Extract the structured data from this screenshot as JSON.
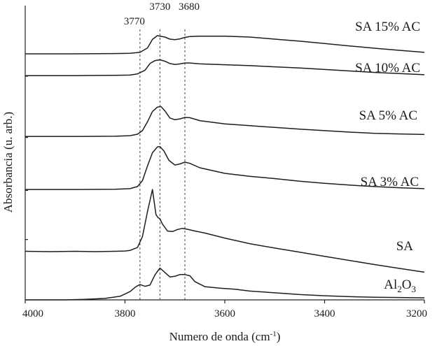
{
  "chart_data": {
    "type": "line",
    "title": "",
    "xlabel": "Numero de onda (cm",
    "xlabel_sup": "-1",
    "xlabel_close": ")",
    "ylabel": "Absorbancia (u. arb.)",
    "xlim": [
      4000,
      3200
    ],
    "x_reversed": true,
    "ylim": [
      0,
      10
    ],
    "y_ticks_labeled": false,
    "x_ticks": [
      {
        "value": 4000,
        "label": "4000"
      },
      {
        "value": 3800,
        "label": "3800"
      },
      {
        "value": 3600,
        "label": "3600"
      },
      {
        "value": 3400,
        "label": "3400"
      },
      {
        "value": 3200,
        "label": "3200"
      }
    ],
    "y_minor_ticks": [
      2.05,
      3.72,
      5.52,
      7.6
    ],
    "reference_lines": [
      {
        "x": 3770,
        "label": "3770"
      },
      {
        "x": 3730,
        "label": "3730"
      },
      {
        "x": 3680,
        "label": "3680"
      }
    ],
    "series": [
      {
        "label": "SA 15% AC",
        "points": [
          [
            4000,
            8.36
          ],
          [
            3900,
            8.36
          ],
          [
            3820,
            8.37
          ],
          [
            3790,
            8.38
          ],
          [
            3770,
            8.41
          ],
          [
            3755,
            8.56
          ],
          [
            3745,
            8.85
          ],
          [
            3735,
            8.98
          ],
          [
            3730,
            8.96
          ],
          [
            3720,
            8.93
          ],
          [
            3710,
            8.86
          ],
          [
            3700,
            8.84
          ],
          [
            3690,
            8.87
          ],
          [
            3680,
            8.92
          ],
          [
            3670,
            8.95
          ],
          [
            3650,
            8.96
          ],
          [
            3600,
            8.96
          ],
          [
            3550,
            8.93
          ],
          [
            3500,
            8.86
          ],
          [
            3450,
            8.79
          ],
          [
            3400,
            8.71
          ],
          [
            3350,
            8.63
          ],
          [
            3300,
            8.55
          ],
          [
            3250,
            8.48
          ],
          [
            3200,
            8.41
          ]
        ]
      },
      {
        "label": "SA 10% AC",
        "points": [
          [
            4000,
            7.62
          ],
          [
            3900,
            7.62
          ],
          [
            3820,
            7.63
          ],
          [
            3790,
            7.64
          ],
          [
            3775,
            7.68
          ],
          [
            3760,
            7.8
          ],
          [
            3750,
            8.03
          ],
          [
            3740,
            8.13
          ],
          [
            3730,
            8.16
          ],
          [
            3720,
            8.11
          ],
          [
            3710,
            8.03
          ],
          [
            3700,
            8.0
          ],
          [
            3690,
            8.02
          ],
          [
            3680,
            8.05
          ],
          [
            3670,
            8.05
          ],
          [
            3650,
            8.02
          ],
          [
            3600,
            7.99
          ],
          [
            3550,
            7.96
          ],
          [
            3500,
            7.92
          ],
          [
            3450,
            7.88
          ],
          [
            3400,
            7.83
          ],
          [
            3350,
            7.78
          ],
          [
            3300,
            7.73
          ],
          [
            3250,
            7.69
          ],
          [
            3200,
            7.65
          ]
        ]
      },
      {
        "label": "SA 5% AC",
        "points": [
          [
            4000,
            5.55
          ],
          [
            3900,
            5.55
          ],
          [
            3820,
            5.56
          ],
          [
            3790,
            5.58
          ],
          [
            3775,
            5.63
          ],
          [
            3765,
            5.75
          ],
          [
            3755,
            6.05
          ],
          [
            3745,
            6.4
          ],
          [
            3735,
            6.55
          ],
          [
            3728,
            6.57
          ],
          [
            3720,
            6.42
          ],
          [
            3710,
            6.18
          ],
          [
            3700,
            6.12
          ],
          [
            3690,
            6.15
          ],
          [
            3680,
            6.2
          ],
          [
            3670,
            6.19
          ],
          [
            3650,
            6.09
          ],
          [
            3600,
            5.98
          ],
          [
            3550,
            5.92
          ],
          [
            3500,
            5.86
          ],
          [
            3450,
            5.8
          ],
          [
            3400,
            5.75
          ],
          [
            3350,
            5.7
          ],
          [
            3300,
            5.66
          ],
          [
            3250,
            5.64
          ],
          [
            3200,
            5.62
          ]
        ]
      },
      {
        "label": "SA 3% AC",
        "points": [
          [
            4000,
            3.75
          ],
          [
            3900,
            3.75
          ],
          [
            3820,
            3.76
          ],
          [
            3790,
            3.78
          ],
          [
            3775,
            3.85
          ],
          [
            3765,
            4.05
          ],
          [
            3755,
            4.55
          ],
          [
            3745,
            5.0
          ],
          [
            3735,
            5.2
          ],
          [
            3730,
            5.21
          ],
          [
            3722,
            5.06
          ],
          [
            3712,
            4.74
          ],
          [
            3700,
            4.58
          ],
          [
            3690,
            4.62
          ],
          [
            3680,
            4.68
          ],
          [
            3670,
            4.64
          ],
          [
            3650,
            4.49
          ],
          [
            3600,
            4.3
          ],
          [
            3550,
            4.2
          ],
          [
            3500,
            4.12
          ],
          [
            3450,
            4.03
          ],
          [
            3400,
            3.96
          ],
          [
            3350,
            3.9
          ],
          [
            3300,
            3.85
          ],
          [
            3250,
            3.81
          ],
          [
            3200,
            3.78
          ]
        ]
      },
      {
        "label": "SA",
        "points": [
          [
            4000,
            1.65
          ],
          [
            3950,
            1.64
          ],
          [
            3900,
            1.65
          ],
          [
            3860,
            1.64
          ],
          [
            3820,
            1.65
          ],
          [
            3800,
            1.66
          ],
          [
            3790,
            1.68
          ],
          [
            3775,
            1.78
          ],
          [
            3765,
            2.15
          ],
          [
            3755,
            3.0
          ],
          [
            3745,
            3.75
          ],
          [
            3738,
            2.9
          ],
          [
            3734,
            2.8
          ],
          [
            3730,
            2.75
          ],
          [
            3725,
            2.58
          ],
          [
            3715,
            2.34
          ],
          [
            3705,
            2.32
          ],
          [
            3695,
            2.39
          ],
          [
            3685,
            2.43
          ],
          [
            3675,
            2.4
          ],
          [
            3660,
            2.34
          ],
          [
            3640,
            2.27
          ],
          [
            3600,
            2.1
          ],
          [
            3550,
            1.91
          ],
          [
            3500,
            1.76
          ],
          [
            3450,
            1.62
          ],
          [
            3400,
            1.48
          ],
          [
            3350,
            1.34
          ],
          [
            3300,
            1.2
          ],
          [
            3250,
            1.07
          ],
          [
            3200,
            0.94
          ]
        ]
      },
      {
        "label": "Al",
        "label_sub1": "2",
        "label_mid": "O",
        "label_sub2": "3",
        "points": [
          [
            4000,
            0.0
          ],
          [
            3920,
            0.0
          ],
          [
            3880,
            0.02
          ],
          [
            3840,
            0.05
          ],
          [
            3810,
            0.12
          ],
          [
            3790,
            0.28
          ],
          [
            3778,
            0.45
          ],
          [
            3770,
            0.52
          ],
          [
            3760,
            0.46
          ],
          [
            3750,
            0.5
          ],
          [
            3740,
            0.85
          ],
          [
            3730,
            1.08
          ],
          [
            3720,
            0.93
          ],
          [
            3710,
            0.78
          ],
          [
            3700,
            0.8
          ],
          [
            3690,
            0.86
          ],
          [
            3680,
            0.86
          ],
          [
            3670,
            0.82
          ],
          [
            3660,
            0.62
          ],
          [
            3640,
            0.45
          ],
          [
            3610,
            0.4
          ],
          [
            3580,
            0.36
          ],
          [
            3550,
            0.3
          ],
          [
            3500,
            0.24
          ],
          [
            3450,
            0.18
          ],
          [
            3400,
            0.14
          ],
          [
            3350,
            0.11
          ],
          [
            3300,
            0.09
          ],
          [
            3250,
            0.08
          ],
          [
            3200,
            0.07
          ]
        ]
      }
    ]
  }
}
